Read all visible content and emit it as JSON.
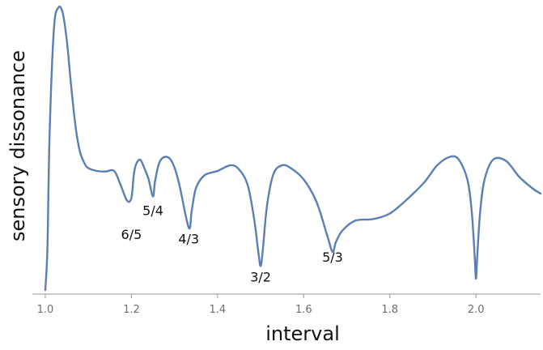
{
  "chart_data": {
    "type": "line",
    "title": "",
    "xlabel": "interval",
    "ylabel": "sensory dissonance",
    "xlim": [
      0.97,
      2.15
    ],
    "ylim": [
      0,
      1
    ],
    "x_ticks": [
      {
        "value": 1.0,
        "label": "1.0"
      },
      {
        "value": 1.2,
        "label": "1.2"
      },
      {
        "value": 1.4,
        "label": "1.4"
      },
      {
        "value": 1.6,
        "label": "1.6"
      },
      {
        "value": 1.8,
        "label": "1.8"
      },
      {
        "value": 2.0,
        "label": "2.0"
      }
    ],
    "y_ticks": [],
    "grid": false,
    "series": [
      {
        "color": "#5a7fb5",
        "x": [
          1.0,
          1.005,
          1.01,
          1.02,
          1.03,
          1.04,
          1.05,
          1.06,
          1.07,
          1.08,
          1.09,
          1.1,
          1.12,
          1.14,
          1.16,
          1.175,
          1.19,
          1.2,
          1.205,
          1.21,
          1.22,
          1.23,
          1.24,
          1.25,
          1.255,
          1.265,
          1.28,
          1.295,
          1.31,
          1.333,
          1.34,
          1.35,
          1.37,
          1.4,
          1.43,
          1.45,
          1.47,
          1.485,
          1.495,
          1.5,
          1.505,
          1.515,
          1.53,
          1.55,
          1.57,
          1.6,
          1.63,
          1.655,
          1.667,
          1.675,
          1.69,
          1.72,
          1.76,
          1.8,
          1.84,
          1.88,
          1.91,
          1.94,
          1.96,
          1.98,
          1.99,
          1.997,
          2.0,
          2.003,
          2.01,
          2.02,
          2.04,
          2.07,
          2.1,
          2.13,
          2.15
        ],
        "values": [
          0.0,
          0.15,
          0.55,
          0.92,
          0.995,
          0.98,
          0.88,
          0.72,
          0.58,
          0.49,
          0.45,
          0.43,
          0.42,
          0.418,
          0.42,
          0.37,
          0.315,
          0.325,
          0.4,
          0.44,
          0.46,
          0.43,
          0.39,
          0.33,
          0.385,
          0.45,
          0.47,
          0.45,
          0.38,
          0.22,
          0.28,
          0.36,
          0.405,
          0.42,
          0.44,
          0.425,
          0.37,
          0.25,
          0.13,
          0.085,
          0.14,
          0.3,
          0.41,
          0.44,
          0.43,
          0.39,
          0.31,
          0.19,
          0.135,
          0.17,
          0.21,
          0.245,
          0.25,
          0.27,
          0.32,
          0.38,
          0.44,
          0.47,
          0.46,
          0.39,
          0.28,
          0.12,
          0.04,
          0.12,
          0.28,
          0.39,
          0.46,
          0.455,
          0.4,
          0.36,
          0.34
        ]
      }
    ],
    "annotations": [
      {
        "label": "6/5",
        "x": 1.2,
        "y": 0.18
      },
      {
        "label": "5/4",
        "x": 1.25,
        "y": 0.265
      },
      {
        "label": "4/3",
        "x": 1.333,
        "y": 0.165
      },
      {
        "label": "3/2",
        "x": 1.5,
        "y": 0.03
      },
      {
        "label": "5/3",
        "x": 1.667,
        "y": 0.1
      }
    ]
  }
}
